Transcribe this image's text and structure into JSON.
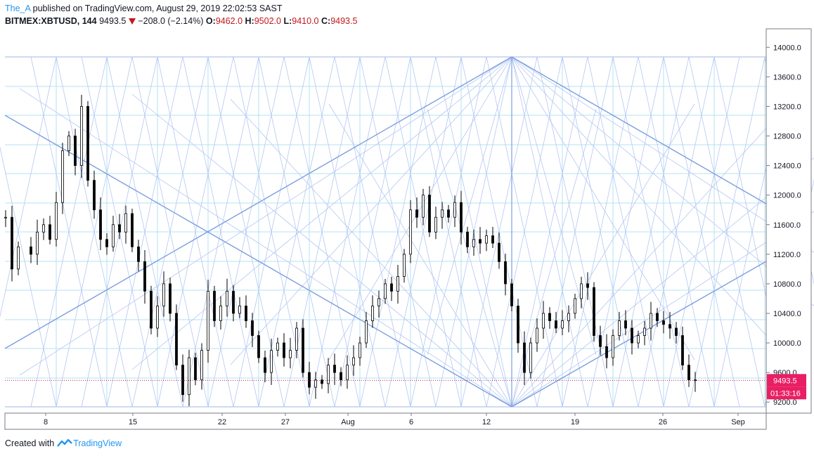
{
  "header": {
    "author": "The_A",
    "published_text": " published on TradingView.com, August 29, 2019 22:02:53 SAST",
    "symbol": "BITMEX:XBTUSD, 144",
    "last": "9493.5",
    "change": "−208.0 (−2.14%)",
    "open_label": "O:",
    "open": "9462.0",
    "high_label": "H:",
    "high": "9502.0",
    "low_label": "L:",
    "low": "9410.0",
    "close_label": "C:",
    "close": "9493.5"
  },
  "footer": {
    "created_with": "Created with",
    "brand": "TradingView"
  },
  "colors": {
    "accent": "#2196f3",
    "down": "#c2181b",
    "candle": "#000000",
    "grid_lines": "#b3c7f2",
    "price_tag": "#e91e63",
    "price_line": "#c2185b"
  },
  "chart_data": {
    "type": "candlestick",
    "title": "BITMEX:XBTUSD, 144",
    "x_ticks": [
      "8",
      "15",
      "22",
      "27",
      "Aug",
      "6",
      "12",
      "19",
      "26",
      "Sep"
    ],
    "y_ticks": [
      "14000.0",
      "13600.0",
      "13200.0",
      "12800.0",
      "12400.0",
      "12000.0",
      "11600.0",
      "11200.0",
      "10800.0",
      "10400.0",
      "10000.0",
      "9600.0",
      "9200.0"
    ],
    "ylim": [
      9050,
      14250
    ],
    "last_price": "9493.5",
    "countdown": "01:33:16",
    "x_unit": "trading days since the first candle, July 4 2019 (day 4 = Jul 8)",
    "series": [
      {
        "name": "XBTUSD close",
        "points": [
          [
            0,
            11700
          ],
          [
            0.5,
            11000
          ],
          [
            1,
            11300
          ],
          [
            2,
            11200
          ],
          [
            2.5,
            11500
          ],
          [
            3,
            11600
          ],
          [
            3.5,
            11400
          ],
          [
            4,
            11900
          ],
          [
            4.5,
            12600
          ],
          [
            5,
            12800
          ],
          [
            5.5,
            12400
          ],
          [
            6,
            13200
          ],
          [
            6.5,
            12200
          ],
          [
            7,
            11800
          ],
          [
            7.5,
            11400
          ],
          [
            8,
            11300
          ],
          [
            8.5,
            11600
          ],
          [
            9,
            11500
          ],
          [
            9.5,
            11750
          ],
          [
            10,
            11300
          ],
          [
            10.5,
            11100
          ],
          [
            11,
            10700
          ],
          [
            11.5,
            10200
          ],
          [
            12,
            10500
          ],
          [
            12.5,
            10800
          ],
          [
            13,
            10400
          ],
          [
            13.5,
            9700
          ],
          [
            14,
            9300
          ],
          [
            14.5,
            9800
          ],
          [
            15,
            9500
          ],
          [
            15.5,
            9900
          ],
          [
            16,
            10700
          ],
          [
            16.5,
            10300
          ],
          [
            17,
            10500
          ],
          [
            17.5,
            10700
          ],
          [
            18,
            10400
          ],
          [
            18.5,
            10500
          ],
          [
            19,
            10300
          ],
          [
            19.5,
            10100
          ],
          [
            20,
            9800
          ],
          [
            20.5,
            9600
          ],
          [
            21,
            9900
          ],
          [
            21.5,
            10000
          ],
          [
            22,
            9800
          ],
          [
            22.5,
            9900
          ],
          [
            23,
            10200
          ],
          [
            23.5,
            9600
          ],
          [
            24,
            9400
          ],
          [
            24.5,
            9500
          ],
          [
            25,
            9450
          ],
          [
            25.5,
            9700
          ],
          [
            26,
            9600
          ],
          [
            26.5,
            9500
          ],
          [
            27,
            9700
          ],
          [
            27.5,
            9800
          ],
          [
            28,
            10000
          ],
          [
            28.5,
            10300
          ],
          [
            29,
            10500
          ],
          [
            29.5,
            10600
          ],
          [
            30,
            10800
          ],
          [
            30.5,
            10700
          ],
          [
            31,
            10900
          ],
          [
            31.5,
            11200
          ],
          [
            32,
            11800
          ],
          [
            32.5,
            11700
          ],
          [
            33,
            12000
          ],
          [
            33.5,
            11500
          ],
          [
            34,
            11700
          ],
          [
            34.5,
            11800
          ],
          [
            35,
            11700
          ],
          [
            35.5,
            11900
          ],
          [
            36,
            11500
          ],
          [
            36.5,
            11300
          ],
          [
            37,
            11400
          ],
          [
            37.5,
            11350
          ],
          [
            38,
            11450
          ],
          [
            38.5,
            11350
          ],
          [
            39,
            11100
          ],
          [
            39.5,
            10800
          ],
          [
            40,
            10500
          ],
          [
            40.5,
            10000
          ],
          [
            41,
            9600
          ],
          [
            41.5,
            10000
          ],
          [
            42,
            10200
          ],
          [
            42.5,
            10400
          ],
          [
            43,
            10300
          ],
          [
            43.5,
            10200
          ],
          [
            44,
            10300
          ],
          [
            44.5,
            10400
          ],
          [
            45,
            10600
          ],
          [
            45.5,
            10800
          ],
          [
            46,
            10750
          ],
          [
            46.5,
            10100
          ],
          [
            47,
            9950
          ],
          [
            47.5,
            9800
          ],
          [
            48,
            10100
          ],
          [
            48.5,
            10300
          ],
          [
            49,
            10200
          ],
          [
            49.5,
            10000
          ],
          [
            50,
            10100
          ],
          [
            50.5,
            10200
          ],
          [
            51,
            10400
          ],
          [
            51.5,
            10300
          ],
          [
            52,
            10250
          ],
          [
            52.5,
            10200
          ],
          [
            53,
            10100
          ],
          [
            53.5,
            9700
          ],
          [
            54,
            9500
          ],
          [
            54.5,
            9493.5
          ]
        ]
      }
    ]
  }
}
